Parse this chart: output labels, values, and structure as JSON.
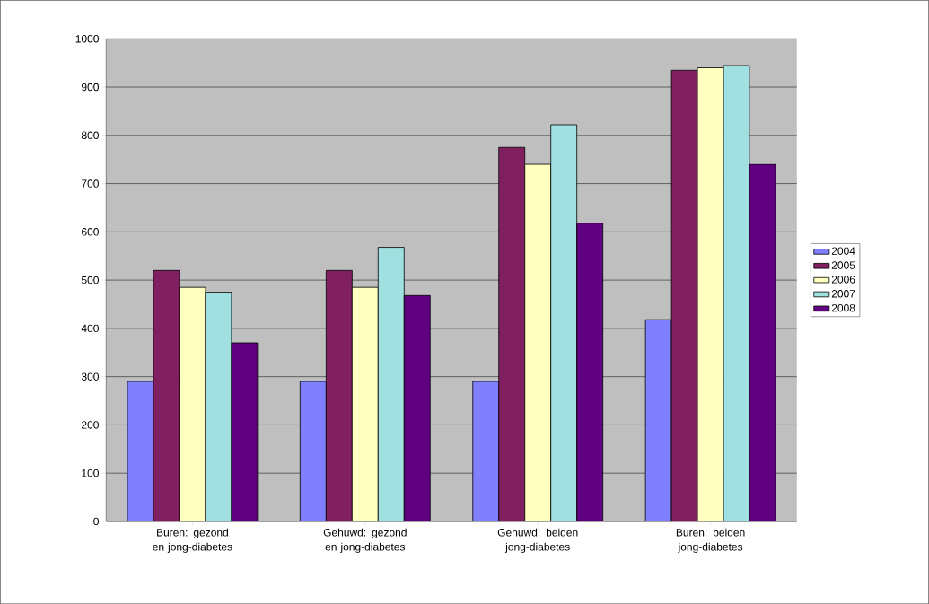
{
  "chart_data": {
    "type": "bar",
    "categories": [
      "Buren: gezond en jong-diabetes",
      "Gehuwd: gezond en jong-diabetes",
      "Gehuwd: beiden jong-diabetes",
      "Buren: beiden jong-diabetes"
    ],
    "series": [
      {
        "name": "2004",
        "color": "#8080ff",
        "values": [
          290,
          290,
          290,
          418
        ]
      },
      {
        "name": "2005",
        "color": "#802060",
        "values": [
          520,
          520,
          775,
          935
        ]
      },
      {
        "name": "2006",
        "color": "#ffffc0",
        "values": [
          485,
          485,
          740,
          940
        ]
      },
      {
        "name": "2007",
        "color": "#a0e0e0",
        "values": [
          475,
          568,
          822,
          945
        ]
      },
      {
        "name": "2008",
        "color": "#600080",
        "values": [
          370,
          468,
          618,
          740
        ]
      }
    ],
    "ylim": [
      0,
      1000
    ],
    "yticks": [
      0,
      100,
      200,
      300,
      400,
      500,
      600,
      700,
      800,
      900,
      1000
    ],
    "grid": "y",
    "legend": "right"
  }
}
